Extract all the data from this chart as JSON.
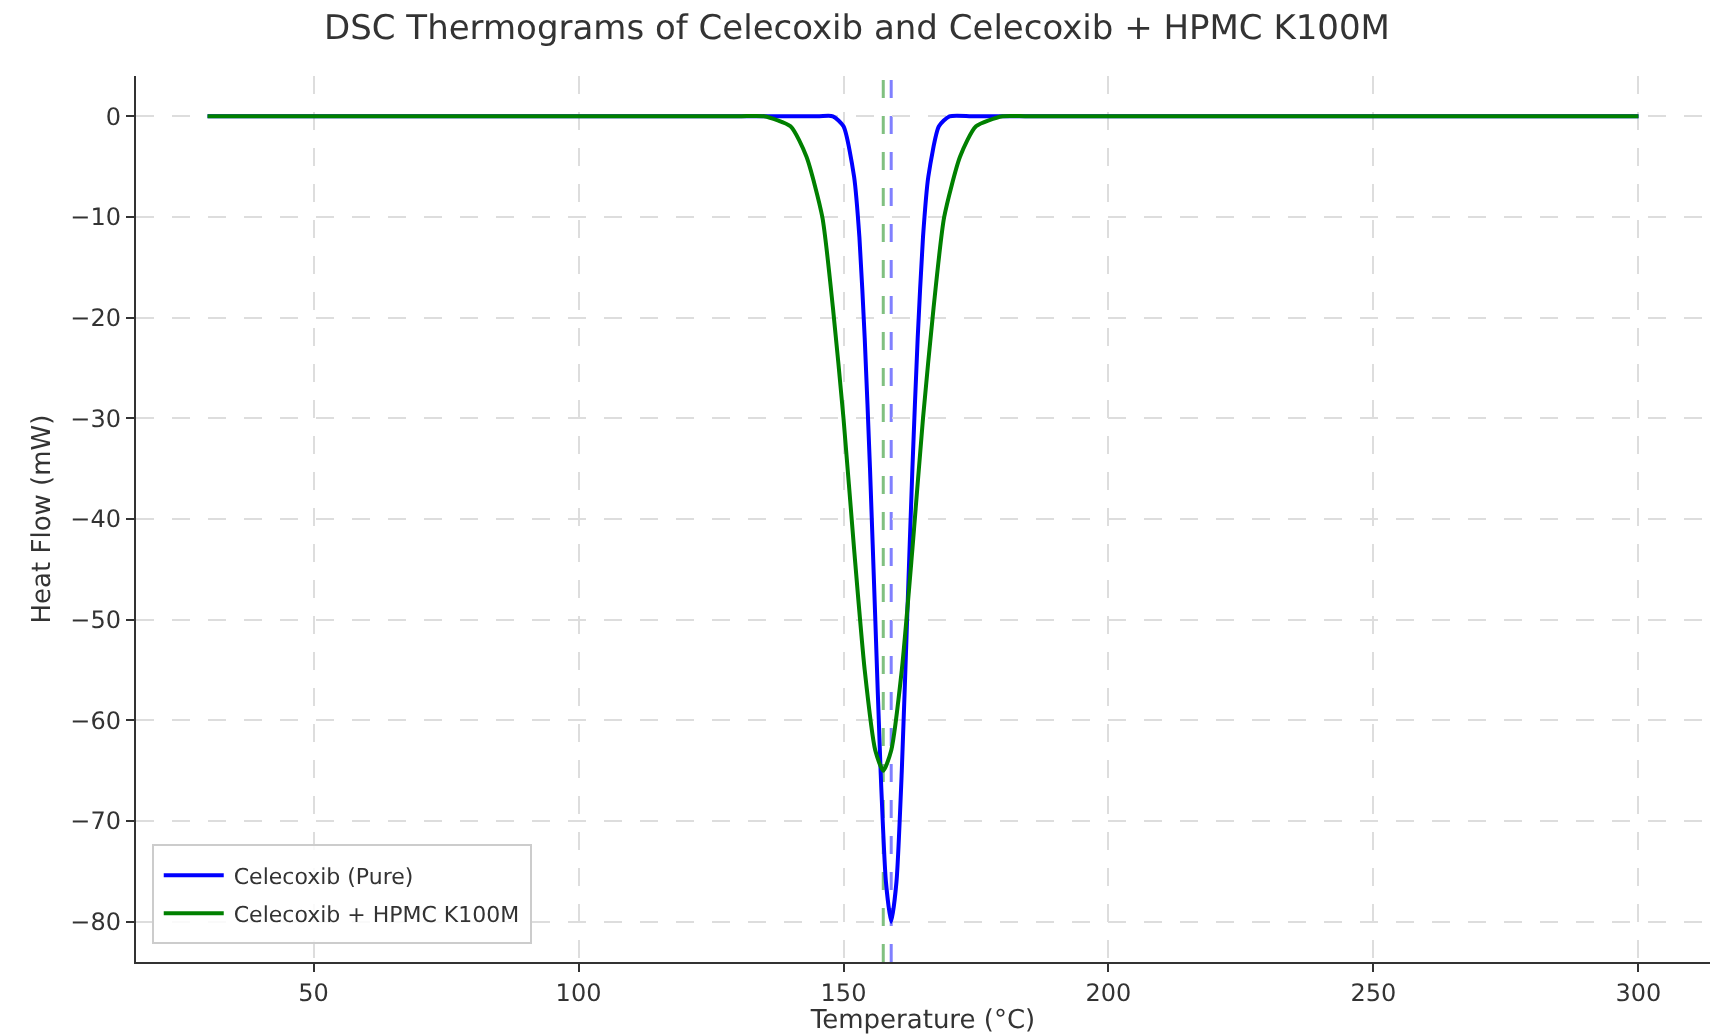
{
  "chart_data": {
    "type": "line",
    "title": "DSC Thermograms of Celecoxib and Celecoxib + HPMC K100M",
    "xlabel": "Temperature (°C)",
    "ylabel": "Heat Flow (mW)",
    "series": [
      {
        "name": "Celecoxib (Pure)",
        "color": "#0000ff",
        "x": [
          30,
          145,
          148,
          150,
          152,
          153,
          154,
          155,
          156,
          157,
          158,
          159,
          160,
          161,
          162,
          163,
          164,
          165,
          166,
          168,
          170,
          175,
          300
        ],
        "values": [
          0,
          0,
          0,
          -1,
          -6,
          -12,
          -22,
          -35,
          -50,
          -65,
          -76,
          -80,
          -76,
          -65,
          -50,
          -35,
          -22,
          -12,
          -6,
          -1,
          0,
          0,
          0
        ]
      },
      {
        "name": "Celecoxib + HPMC K100M",
        "color": "#008000",
        "x": [
          30,
          130,
          135,
          140,
          143,
          146,
          148,
          150,
          152,
          154,
          156,
          157.5,
          159,
          161,
          163,
          165,
          167,
          169,
          172,
          175,
          180,
          185,
          300
        ],
        "values": [
          0,
          0,
          0,
          -1,
          -4,
          -10,
          -19,
          -30,
          -43,
          -55,
          -63,
          -65,
          -63,
          -55,
          -43,
          -30,
          -19,
          -10,
          -4,
          -1,
          0,
          0,
          0
        ]
      }
    ],
    "xlim": [
      16.5,
      313.5
    ],
    "xticks": [
      50,
      100,
      150,
      200,
      250,
      300
    ],
    "ylim": [
      -84,
      4
    ],
    "yticks": [
      0,
      -10,
      -20,
      -30,
      -40,
      -50,
      -60,
      -70,
      -80
    ],
    "ref_lines": [
      {
        "axis": "x",
        "value": 157.5,
        "color": "#80c080",
        "line_style": "dashed"
      },
      {
        "axis": "x",
        "value": 159,
        "color": "#8080ff",
        "line_style": "dashed"
      }
    ],
    "grid": true,
    "legend": "bottom left",
    "marker": "none",
    "line_style": "solid"
  }
}
